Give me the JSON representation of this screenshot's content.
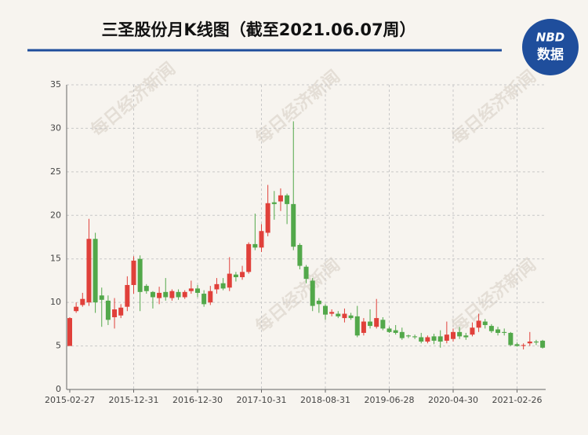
{
  "chart_data": {
    "type": "candlestick",
    "title": "三圣股份月K线图（截至2021.06.07周）",
    "categories": [
      "2015-02-27",
      null,
      null,
      null,
      null,
      null,
      null,
      null,
      null,
      null,
      "2015-12-31",
      null,
      null,
      null,
      null,
      null,
      null,
      null,
      null,
      null,
      "2016-12-30",
      null,
      null,
      null,
      null,
      null,
      null,
      null,
      null,
      null,
      "2017-10-31",
      null,
      null,
      null,
      null,
      null,
      null,
      null,
      null,
      null,
      "2018-08-31",
      null,
      null,
      null,
      null,
      null,
      null,
      null,
      null,
      null,
      "2019-06-28",
      null,
      null,
      null,
      null,
      null,
      null,
      null,
      null,
      null,
      "2020-04-30",
      null,
      null,
      null,
      null,
      null,
      null,
      null,
      null,
      null,
      "2021-02-26",
      null,
      null,
      null,
      null
    ],
    "open": [
      5,
      9,
      9.7,
      10,
      17.3,
      10.8,
      10.2,
      8.3,
      8.5,
      9.5,
      12,
      15,
      11.9,
      11.2,
      10.5,
      11.2,
      10.5,
      11.2,
      10.6,
      11.3,
      11.6,
      11,
      10,
      11.5,
      12.2,
      11.7,
      13.2,
      12.9,
      13.5,
      16.7,
      16.3,
      18,
      21.5,
      21.6,
      22.3,
      21.3,
      16.6,
      14.1,
      12.5,
      10.2,
      9.6,
      8.7,
      8.7,
      8.2,
      8.5,
      8.4,
      6.5,
      7.8,
      7.2,
      8,
      7,
      6.8,
      6.6,
      6.2,
      6.1,
      6,
      5.5,
      6.1,
      6.1,
      5.6,
      5.8,
      6.6,
      6.2,
      6.3,
      7.1,
      7.8,
      7.3,
      6.9,
      6.6,
      6.5,
      5.2,
      5,
      5.3,
      5.5,
      5.6
    ],
    "high": [
      8.3,
      10,
      11.1,
      19.6,
      18,
      11.7,
      10.8,
      10.5,
      9.8,
      13,
      15.3,
      15.4,
      12.1,
      11.3,
      11.8,
      12.8,
      11.5,
      11.5,
      11.4,
      12.5,
      12,
      11.4,
      11.9,
      12.8,
      12.8,
      15.2,
      13.5,
      14.2,
      16.9,
      20.2,
      19,
      23.5,
      22.8,
      23.1,
      22.5,
      30.8,
      16.8,
      14.3,
      12.8,
      10.5,
      9.8,
      9.2,
      9,
      9.3,
      8.8,
      9.6,
      8.2,
      9.2,
      10.4,
      8.3,
      7.2,
      7.4,
      7.1,
      6.3,
      6.3,
      6.5,
      6.2,
      6.4,
      6.8,
      7.8,
      7,
      7.2,
      6.5,
      7.7,
      8.7,
      8.1,
      7.5,
      7.2,
      7,
      6.6,
      5.4,
      5.3,
      6.6,
      5.7,
      5.7
    ],
    "low": [
      5,
      8.8,
      9.5,
      9.6,
      8.8,
      7.2,
      7.4,
      7,
      8.2,
      9,
      11,
      9,
      11,
      9.3,
      9.8,
      10.2,
      10.2,
      10.3,
      10.4,
      11,
      10.6,
      9.5,
      9.7,
      11,
      11.4,
      11.3,
      12.4,
      12.6,
      13.3,
      16,
      15.8,
      17.6,
      19.5,
      20.5,
      19,
      16,
      13.8,
      12.2,
      9,
      8.8,
      8,
      8.4,
      8.2,
      7.7,
      8,
      6,
      6.2,
      7,
      7,
      6.8,
      6.5,
      6.3,
      5.7,
      5.9,
      5.8,
      5.3,
      5.3,
      5.2,
      4.8,
      5.3,
      5.5,
      5.8,
      5.7,
      6.1,
      6.6,
      7,
      6.5,
      6.2,
      6.2,
      5,
      4.9,
      4.6,
      5,
      5.1,
      4.7
    ],
    "close": [
      8.2,
      9.5,
      10.4,
      17.3,
      10,
      10.3,
      8,
      9.2,
      9.4,
      12,
      14.8,
      11.2,
      11.3,
      10.6,
      11.1,
      10.6,
      11.3,
      10.6,
      11.2,
      11.6,
      11.1,
      9.8,
      11.3,
      12.1,
      11.6,
      13.3,
      12.9,
      13.5,
      16.7,
      16.3,
      18.2,
      21.4,
      21.3,
      22.3,
      21.3,
      16.4,
      14.2,
      12.7,
      9.6,
      9.8,
      8.6,
      8.9,
      8.4,
      8.7,
      8.2,
      6.2,
      7.8,
      7.3,
      8.2,
      7,
      6.6,
      6.5,
      5.9,
      6.1,
      6,
      5.5,
      6,
      5.6,
      5.5,
      6.3,
      6.6,
      6.1,
      6,
      7.1,
      7.9,
      7.4,
      6.7,
      6.5,
      6.5,
      5.1,
      5,
      5.1,
      5.5,
      5.4,
      4.8
    ],
    "up_color": "#e0403a",
    "down_color": "#52a84a",
    "ylim": [
      0,
      35
    ],
    "yticks": [
      0,
      5,
      10,
      15,
      20,
      25,
      30,
      35
    ],
    "grid": true
  },
  "logo": {
    "brand": "NBD",
    "text": "数据"
  },
  "watermark": "每日经济新闻"
}
